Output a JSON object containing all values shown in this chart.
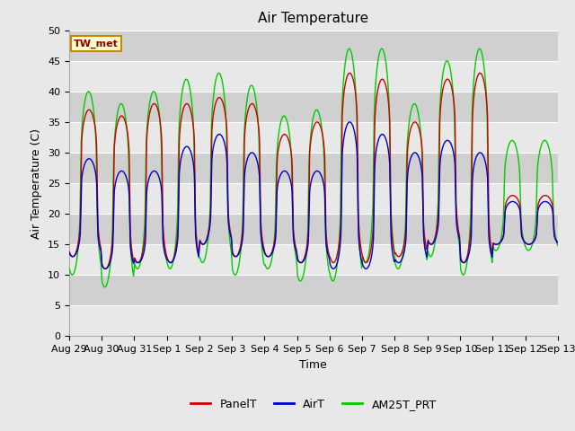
{
  "title": "Air Temperature",
  "ylabel": "Air Temperature (C)",
  "xlabel": "Time",
  "station_label": "TW_met",
  "ylim": [
    0,
    50
  ],
  "tick_labels": [
    "Aug 29",
    "Aug 30",
    "Aug 31",
    "Sep 1",
    "Sep 2",
    "Sep 3",
    "Sep 4",
    "Sep 5",
    "Sep 6",
    "Sep 7",
    "Sep 8",
    "Sep 9",
    "Sep 10",
    "Sep 11",
    "Sep 12",
    "Sep 13"
  ],
  "legend_labels": [
    "PanelT",
    "AirT",
    "AM25T_PRT"
  ],
  "line_colors": [
    "#cc0000",
    "#0000cc",
    "#00cc00"
  ],
  "background_color": "#e8e8e8",
  "plot_bg_color_light": "#e8e8e8",
  "plot_bg_color_dark": "#d0d0d0",
  "title_fontsize": 11,
  "axis_fontsize": 9,
  "tick_fontsize": 8,
  "panel_mins": [
    13,
    11,
    12,
    12,
    15,
    13,
    13,
    12,
    12,
    12,
    13,
    15,
    12,
    15,
    15
  ],
  "panel_maxs": [
    37,
    36,
    38,
    38,
    39,
    38,
    33,
    35,
    43,
    42,
    35,
    42,
    43,
    23,
    23
  ],
  "air_mins": [
    13,
    11,
    12,
    12,
    15,
    13,
    13,
    12,
    11,
    11,
    12,
    15,
    12,
    15,
    15
  ],
  "air_maxs": [
    29,
    27,
    27,
    31,
    33,
    30,
    27,
    27,
    35,
    33,
    30,
    32,
    30,
    22,
    22
  ],
  "am25_mins": [
    10,
    8,
    11,
    11,
    12,
    10,
    11,
    9,
    9,
    12,
    11,
    13,
    10,
    14,
    14
  ],
  "am25_maxs": [
    40,
    38,
    40,
    42,
    43,
    41,
    36,
    37,
    47,
    47,
    38,
    45,
    47,
    32,
    32
  ]
}
